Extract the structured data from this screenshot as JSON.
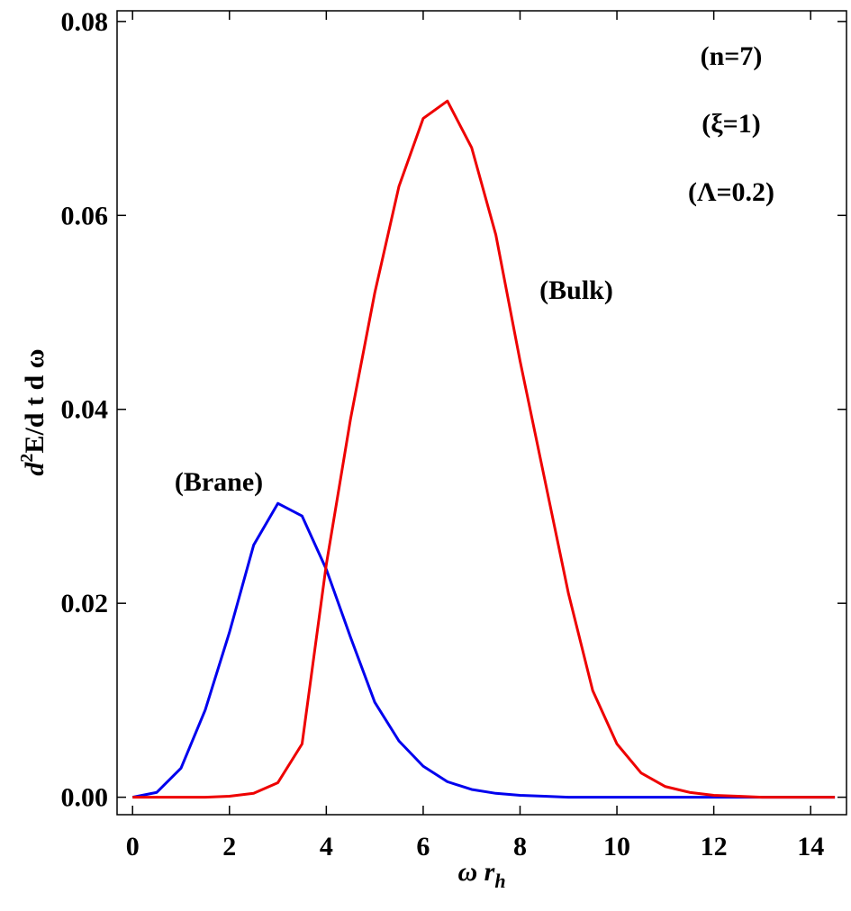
{
  "chart_data": {
    "type": "line",
    "x_label": [
      "ω r",
      "h"
    ],
    "y_label": [
      "d",
      "2",
      "E/d t d ω"
    ],
    "annotations": [
      "(n=7)",
      "(ξ=1)",
      "(Λ=0.2)",
      "(Bulk)",
      "(Brane)"
    ],
    "x": [
      0,
      0.5,
      1,
      1.5,
      2,
      2.5,
      3,
      3.5,
      4,
      4.5,
      5,
      5.5,
      6,
      6.5,
      7,
      7.5,
      8,
      8.5,
      9,
      9.5,
      10,
      10.5,
      11,
      11.5,
      12,
      12.5,
      13,
      13.5,
      14,
      14.5
    ],
    "series": [
      {
        "name": "(Brane)",
        "color": "#0000ee",
        "values": [
          0,
          0.0005,
          0.003,
          0.009,
          0.017,
          0.026,
          0.0303,
          0.029,
          0.0235,
          0.0165,
          0.0098,
          0.0058,
          0.0032,
          0.0016,
          0.0008,
          0.0004,
          0.0002,
          0.0001,
          0,
          0,
          0,
          0,
          0,
          0,
          0,
          0,
          0,
          0,
          0,
          0
        ]
      },
      {
        "name": "(Bulk)",
        "color": "#ee0000",
        "values": [
          0,
          0,
          0,
          0,
          0.0001,
          0.0004,
          0.0015,
          0.0055,
          0.024,
          0.039,
          0.052,
          0.063,
          0.07,
          0.0718,
          0.067,
          0.058,
          0.045,
          0.033,
          0.021,
          0.011,
          0.0055,
          0.0025,
          0.0011,
          0.0005,
          0.0002,
          0.0001,
          0,
          0,
          0,
          0
        ]
      }
    ],
    "xlim": [
      -0.32,
      14.74
    ],
    "ylim": [
      -0.0018,
      0.0811
    ],
    "xticks": [
      0,
      2,
      4,
      6,
      8,
      10,
      12,
      14
    ],
    "yticks": [
      {
        "value": 0,
        "label": "0.00"
      },
      {
        "value": 0.02,
        "label": "0.02"
      },
      {
        "value": 0.04,
        "label": "0.04"
      },
      {
        "value": 0.06,
        "label": "0.06"
      },
      {
        "value": 0.08,
        "label": "0.08"
      }
    ]
  }
}
